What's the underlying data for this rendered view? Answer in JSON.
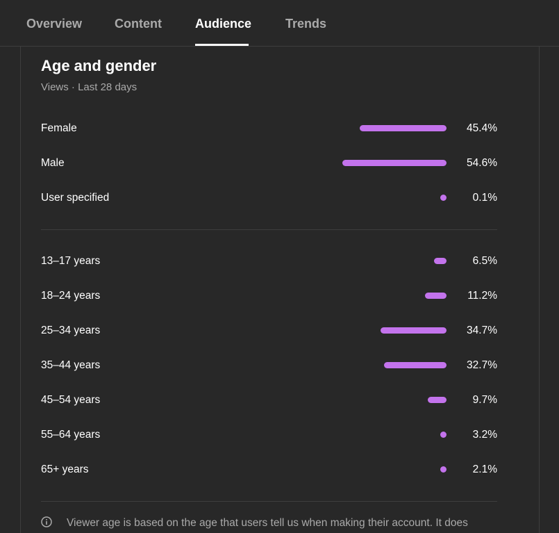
{
  "tabs": [
    {
      "label": "Overview",
      "active": false
    },
    {
      "label": "Content",
      "active": false
    },
    {
      "label": "Audience",
      "active": true
    },
    {
      "label": "Trends",
      "active": false
    }
  ],
  "card": {
    "title": "Age and gender",
    "subtitle": "Views · Last 28 days",
    "footer_note": "Viewer age is based on the age that users tell us when making their account. It does"
  },
  "colors": {
    "bar": "#c373ec"
  },
  "chart_data": [
    {
      "type": "bar",
      "categories": [
        "Female",
        "Male",
        "User specified"
      ],
      "values": [
        45.4,
        54.6,
        0.1
      ],
      "value_labels": [
        "45.4%",
        "54.6%",
        "0.1%"
      ]
    },
    {
      "type": "bar",
      "categories": [
        "13–17 years",
        "18–24 years",
        "25–34 years",
        "35–44 years",
        "45–54 years",
        "55–64 years",
        "65+ years"
      ],
      "values": [
        6.5,
        11.2,
        34.7,
        32.7,
        9.7,
        3.2,
        2.1
      ],
      "value_labels": [
        "6.5%",
        "11.2%",
        "34.7%",
        "32.7%",
        "9.7%",
        "3.2%",
        "2.1%"
      ]
    }
  ]
}
